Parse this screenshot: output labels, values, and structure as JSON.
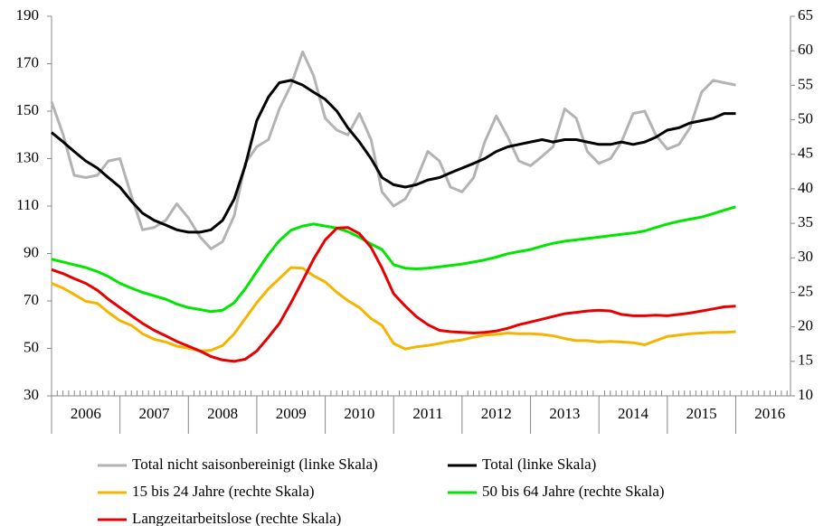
{
  "chart_data": {
    "type": "line",
    "x": [
      2006,
      2006.17,
      2006.33,
      2006.5,
      2006.67,
      2006.83,
      2007,
      2007.17,
      2007.33,
      2007.5,
      2007.67,
      2007.83,
      2008,
      2008.17,
      2008.33,
      2008.5,
      2008.67,
      2008.83,
      2009,
      2009.17,
      2009.33,
      2009.5,
      2009.67,
      2009.83,
      2010,
      2010.17,
      2010.33,
      2010.5,
      2010.67,
      2010.83,
      2011,
      2011.17,
      2011.33,
      2011.5,
      2011.67,
      2011.83,
      2012,
      2012.17,
      2012.33,
      2012.5,
      2012.67,
      2012.83,
      2013,
      2013.17,
      2013.33,
      2013.5,
      2013.67,
      2013.83,
      2014,
      2014.17,
      2014.33,
      2014.5,
      2014.67,
      2014.83,
      2015,
      2015.17,
      2015.33,
      2015.5,
      2015.67,
      2015.83,
      2016
    ],
    "xlim": [
      2006,
      2016.8
    ],
    "xticks": [
      {
        "value": 2006.5,
        "label": "2006"
      },
      {
        "value": 2007.5,
        "label": "2007"
      },
      {
        "value": 2008.5,
        "label": "2008"
      },
      {
        "value": 2009.5,
        "label": "2009"
      },
      {
        "value": 2010.5,
        "label": "2010"
      },
      {
        "value": 2011.5,
        "label": "2011"
      },
      {
        "value": 2012.5,
        "label": "2012"
      },
      {
        "value": 2013.5,
        "label": "2013"
      },
      {
        "value": 2014.5,
        "label": "2014"
      },
      {
        "value": 2015.5,
        "label": "2015"
      },
      {
        "value": 2016.5,
        "label": "2016"
      }
    ],
    "ylim": [
      30,
      190
    ],
    "yticks": [
      30,
      50,
      70,
      90,
      110,
      130,
      150,
      170,
      190
    ],
    "y2lim": [
      10,
      65
    ],
    "y2ticks": [
      10,
      15,
      20,
      25,
      30,
      35,
      40,
      45,
      50,
      55,
      60,
      65
    ],
    "grid": false,
    "series": [
      {
        "name": "Total nicht saisonbereinigt (linke Skala)",
        "color": "#b3b3b3",
        "values": [
          154,
          140,
          123,
          122,
          123,
          129,
          130,
          114,
          100,
          101,
          104,
          111,
          105,
          97,
          92,
          95,
          106,
          128,
          135,
          138,
          151,
          161,
          175,
          165,
          147,
          142,
          140,
          149,
          138,
          116,
          110,
          113,
          121,
          133,
          129,
          118,
          116,
          122,
          137,
          148,
          139,
          129,
          127,
          131,
          135,
          151,
          147,
          133,
          128,
          130,
          137,
          149,
          150,
          140,
          134,
          136,
          143,
          158,
          163,
          162,
          161
        ]
      },
      {
        "name": "Total (linke Skala)",
        "color": "#000000",
        "values": [
          141,
          137,
          133,
          129,
          126,
          122,
          118,
          112,
          107,
          104,
          102,
          100,
          99,
          99,
          100,
          104,
          113,
          127,
          146,
          156,
          162,
          163,
          161,
          158,
          155,
          150,
          143,
          137,
          130,
          122,
          119,
          118,
          119,
          121,
          122,
          124,
          126,
          128,
          130,
          133,
          135,
          136,
          137,
          138,
          137,
          138,
          138,
          137,
          136,
          136,
          137,
          136,
          137,
          139,
          142,
          143,
          145,
          146,
          147,
          149,
          149
        ]
      },
      {
        "name": "15 bis 24 Jahre (rechte Skala)",
        "color": "#f5b400",
        "axis": "y2",
        "values": [
          26.3,
          25.6,
          24.7,
          23.7,
          23.4,
          22.1,
          20.9,
          20.2,
          19.0,
          18.2,
          17.8,
          17.2,
          16.9,
          16.5,
          16.6,
          17.3,
          19.0,
          21.2,
          23.5,
          25.5,
          27.0,
          28.6,
          28.5,
          27.4,
          26.5,
          25.0,
          23.8,
          22.8,
          21.2,
          20.2,
          17.6,
          16.8,
          17.1,
          17.3,
          17.6,
          17.9,
          18.1,
          18.5,
          18.8,
          18.9,
          19.1,
          19.0,
          19.0,
          18.9,
          18.7,
          18.3,
          18.0,
          18.0,
          17.8,
          17.9,
          17.8,
          17.7,
          17.4,
          18.0,
          18.6,
          18.8,
          19.0,
          19.1,
          19.2,
          19.2,
          19.3
        ]
      },
      {
        "name": "50 bis 64 Jahre (rechte Skala)",
        "color": "#00e600",
        "axis": "y2",
        "values": [
          29.8,
          29.4,
          29.0,
          28.6,
          28.0,
          27.3,
          26.3,
          25.6,
          25.0,
          24.5,
          24.0,
          23.3,
          22.8,
          22.5,
          22.2,
          22.4,
          23.5,
          25.5,
          28.0,
          30.5,
          32.5,
          34.0,
          34.6,
          34.9,
          34.6,
          34.3,
          33.8,
          33.0,
          32.0,
          31.2,
          29.0,
          28.5,
          28.4,
          28.5,
          28.7,
          28.9,
          29.1,
          29.4,
          29.7,
          30.1,
          30.6,
          30.9,
          31.2,
          31.7,
          32.1,
          32.4,
          32.6,
          32.8,
          33.0,
          33.2,
          33.4,
          33.6,
          33.9,
          34.4,
          34.9,
          35.3,
          35.6,
          35.9,
          36.4,
          36.9,
          37.4
        ]
      },
      {
        "name": "Langzeitarbeitslose (rechte Skala)",
        "color": "#e60000",
        "axis": "y2",
        "values": [
          28.3,
          27.7,
          27.0,
          26.3,
          25.3,
          24.0,
          22.8,
          21.6,
          20.5,
          19.5,
          18.7,
          17.9,
          17.2,
          16.5,
          15.7,
          15.2,
          15.0,
          15.3,
          16.5,
          18.5,
          20.5,
          23.5,
          26.7,
          29.8,
          32.6,
          34.3,
          34.4,
          33.5,
          31.5,
          28.5,
          24.8,
          23.0,
          21.5,
          20.3,
          19.5,
          19.3,
          19.2,
          19.1,
          19.2,
          19.4,
          19.8,
          20.3,
          20.7,
          21.1,
          21.5,
          21.9,
          22.1,
          22.3,
          22.4,
          22.3,
          21.8,
          21.6,
          21.6,
          21.7,
          21.6,
          21.8,
          22.0,
          22.3,
          22.6,
          22.9,
          23.0
        ]
      }
    ]
  }
}
